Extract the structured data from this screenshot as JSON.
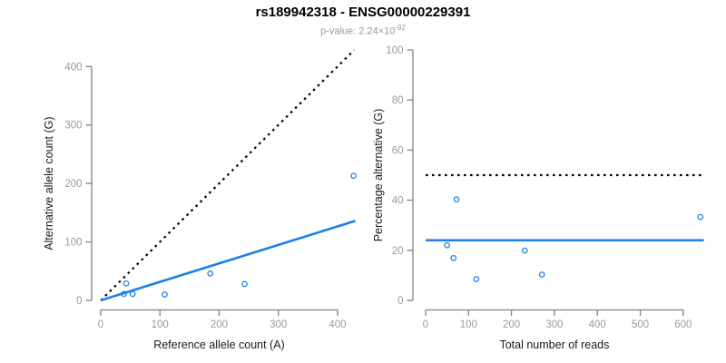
{
  "header": {
    "title": "rs189942318 - ENSG00000229391",
    "subtitle_prefix": "p-value: 2.24×10",
    "subtitle_exponent": "-92"
  },
  "palette": {
    "point_color": "#1d7fe8",
    "fit_line_color": "#1d7fe8",
    "reference_line_color": "#000000",
    "axis_color": "#828282",
    "tick_label_color": "#9a9a9a",
    "axis_title_color": "#1a1a1a",
    "background": "#ffffff"
  },
  "chart_data": [
    {
      "id": "allele-counts-scatter",
      "type": "scatter",
      "xlabel": "Reference allele count (A)",
      "ylabel": "Alternative allele count (G)",
      "xlim": [
        0,
        430
      ],
      "ylim": [
        0,
        430
      ],
      "xticks": [
        0,
        100,
        200,
        300,
        400
      ],
      "yticks": [
        0,
        100,
        200,
        300,
        400
      ],
      "grid": false,
      "points": [
        {
          "x": 39,
          "y": 11
        },
        {
          "x": 43,
          "y": 29
        },
        {
          "x": 54,
          "y": 11
        },
        {
          "x": 108,
          "y": 10
        },
        {
          "x": 185,
          "y": 46
        },
        {
          "x": 243,
          "y": 28
        },
        {
          "x": 427,
          "y": 213
        }
      ],
      "lines": [
        {
          "name": "identity-line",
          "style": "dotted",
          "color_key": "reference_line_color",
          "x1": 0,
          "y1": 0,
          "x2": 428,
          "y2": 428
        },
        {
          "name": "fit-line",
          "style": "solid",
          "color_key": "fit_line_color",
          "x1": 0,
          "y1": 0,
          "x2": 430,
          "y2": 136
        }
      ]
    },
    {
      "id": "percentage-vs-reads-scatter",
      "type": "scatter",
      "xlabel": "Total number of reads",
      "ylabel": "Percentage alternative (G)",
      "xlim": [
        0,
        650
      ],
      "ylim": [
        0,
        100
      ],
      "xticks": [
        0,
        100,
        200,
        300,
        400,
        500,
        600
      ],
      "yticks": [
        0,
        20,
        40,
        60,
        80,
        100
      ],
      "grid": false,
      "points": [
        {
          "x": 50,
          "y": 22.0
        },
        {
          "x": 72,
          "y": 40.3
        },
        {
          "x": 65,
          "y": 16.9
        },
        {
          "x": 118,
          "y": 8.5
        },
        {
          "x": 231,
          "y": 19.9
        },
        {
          "x": 271,
          "y": 10.3
        },
        {
          "x": 640,
          "y": 33.3
        }
      ],
      "lines": [
        {
          "name": "fifty-percent-line",
          "style": "dotted",
          "color_key": "reference_line_color",
          "x1": 0,
          "y1": 50,
          "x2": 648,
          "y2": 50
        },
        {
          "name": "mean-percentage-line",
          "style": "solid",
          "color_key": "fit_line_color",
          "x1": 0,
          "y1": 24,
          "x2": 648,
          "y2": 24
        }
      ]
    }
  ]
}
